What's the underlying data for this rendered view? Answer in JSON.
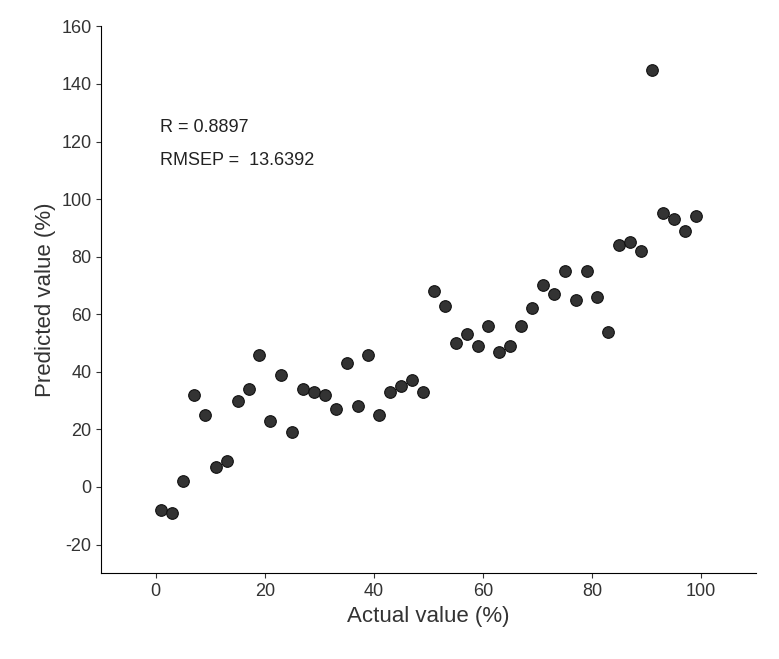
{
  "chart_data": {
    "type": "scatter",
    "x_label": "Actual value (%)",
    "y_label": "Predicted value (%)",
    "annotations": [
      "R = 0.8897",
      "RMSEP =  13.6392"
    ],
    "x": [
      1,
      3,
      5,
      7,
      9,
      11,
      13,
      15,
      17,
      19,
      21,
      23,
      25,
      27,
      29,
      31,
      33,
      35,
      37,
      39,
      41,
      43,
      45,
      47,
      49,
      51,
      53,
      55,
      57,
      59,
      61,
      63,
      65,
      67,
      69,
      71,
      73,
      75,
      77,
      79,
      81,
      83,
      85,
      87,
      89,
      91,
      93,
      95,
      97,
      99
    ],
    "values": [
      -8,
      -9,
      2,
      32,
      25,
      7,
      9,
      30,
      34,
      46,
      23,
      39,
      19,
      34,
      33,
      32,
      27,
      43,
      28,
      46,
      25,
      33,
      35,
      37,
      33,
      68,
      63,
      50,
      53,
      49,
      56,
      47,
      49,
      56,
      62,
      70,
      67,
      75,
      65,
      75,
      66,
      54,
      84,
      85,
      82,
      145,
      95,
      93,
      89,
      94
    ],
    "color": "#333333",
    "marker": "o",
    "xlim": [
      -10,
      110
    ],
    "ylim": [
      -30,
      160
    ],
    "xticks": [
      0,
      20,
      40,
      60,
      80,
      100
    ],
    "yticks": [
      -20,
      0,
      20,
      40,
      60,
      80,
      100,
      120,
      140,
      160
    ],
    "grid": false
  }
}
